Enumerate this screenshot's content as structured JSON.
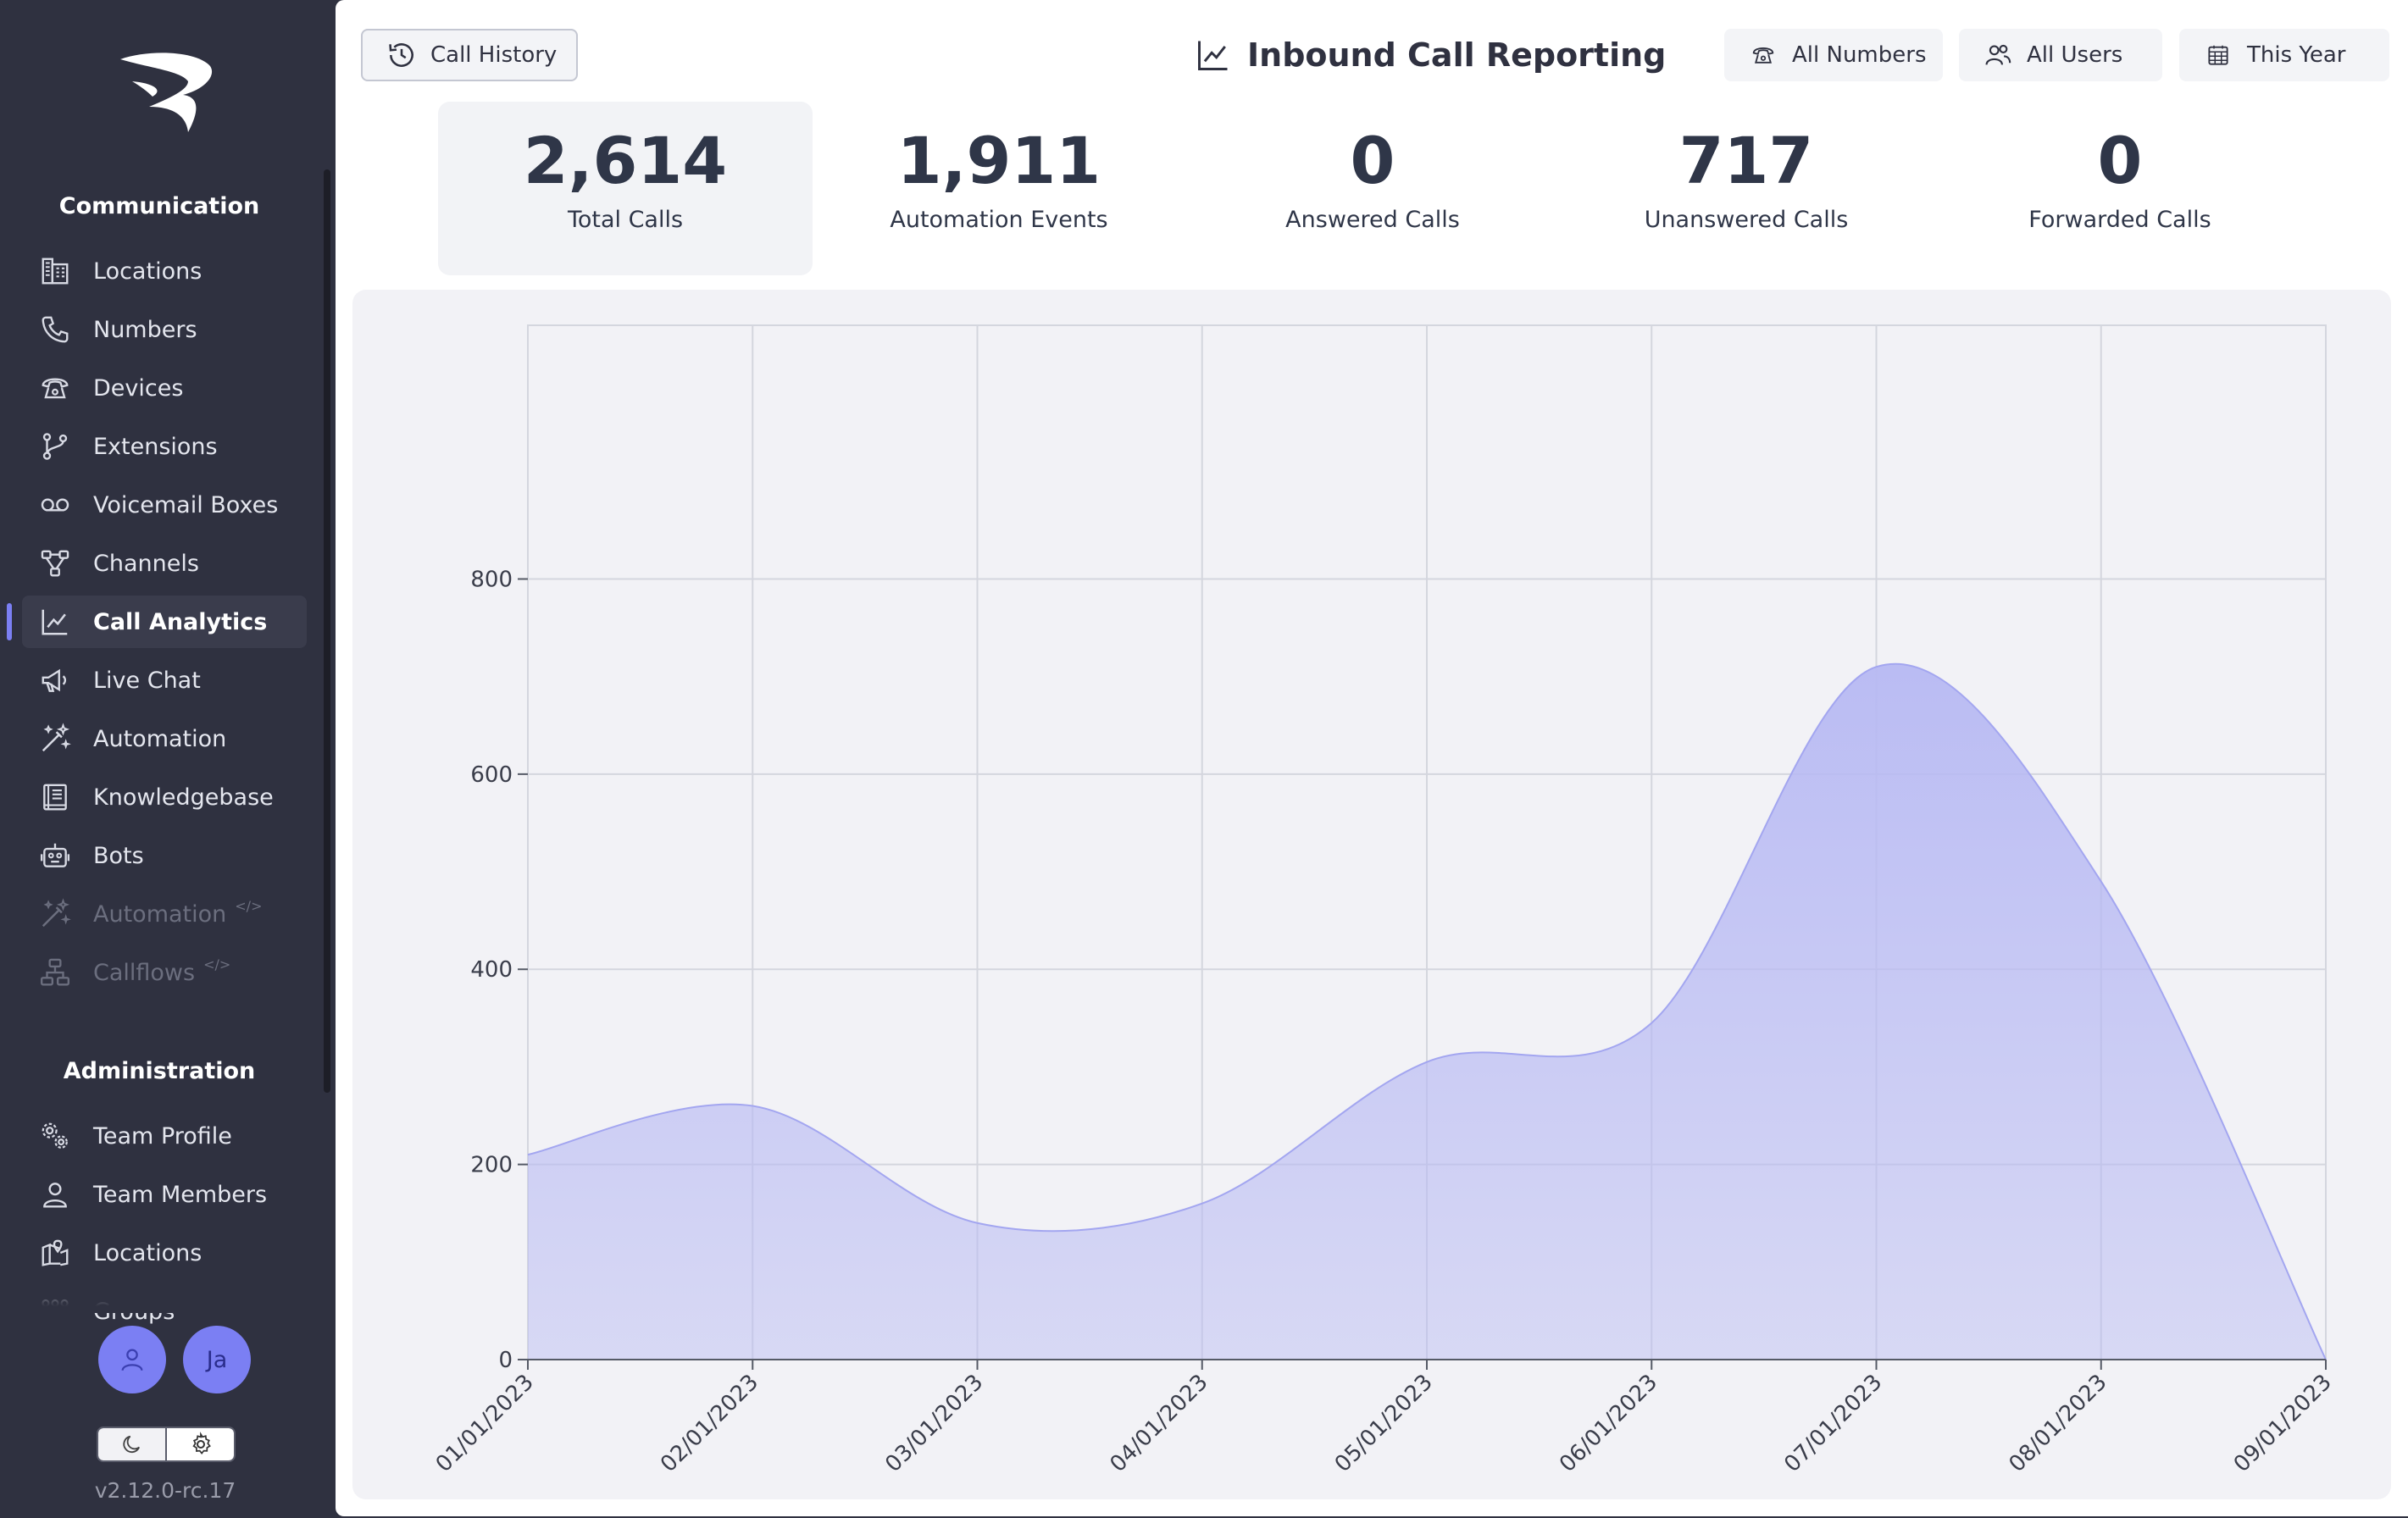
{
  "sidebar": {
    "sections": [
      {
        "title": "Communication",
        "items": [
          {
            "label": "Locations",
            "icon": "building-icon"
          },
          {
            "label": "Numbers",
            "icon": "phone-icon"
          },
          {
            "label": "Devices",
            "icon": "desk-phone-icon"
          },
          {
            "label": "Extensions",
            "icon": "git-branch-icon"
          },
          {
            "label": "Voicemail Boxes",
            "icon": "voicemail-icon"
          },
          {
            "label": "Channels",
            "icon": "share-nodes-icon"
          },
          {
            "label": "Call Analytics",
            "icon": "line-chart-icon",
            "active": true
          },
          {
            "label": "Live Chat",
            "icon": "megaphone-icon"
          },
          {
            "label": "Automation",
            "icon": "magic-wand-icon"
          },
          {
            "label": "Knowledgebase",
            "icon": "book-icon"
          },
          {
            "label": "Bots",
            "icon": "robot-icon"
          },
          {
            "label": "Automation",
            "icon": "magic-wand-icon",
            "disabled": true,
            "tag": "</>"
          },
          {
            "label": "Callflows",
            "icon": "sitemap-icon",
            "disabled": true,
            "tag": "</>"
          }
        ]
      },
      {
        "title": "Administration",
        "items": [
          {
            "label": "Team Profile",
            "icon": "cogs-icon"
          },
          {
            "label": "Team Members",
            "icon": "user-icon"
          },
          {
            "label": "Locations",
            "icon": "map-icon"
          },
          {
            "label": "Groups",
            "icon": "group-icon"
          }
        ]
      }
    ],
    "avatars": [
      {
        "label": "",
        "icon": "user-icon"
      },
      {
        "label": "Ja"
      }
    ],
    "version": "v2.12.0-rc.17"
  },
  "header": {
    "call_history_label": "Call History",
    "title": "Inbound Call Reporting",
    "filters": [
      {
        "label": "All Numbers",
        "icon": "desk-phone-icon"
      },
      {
        "label": "All Users",
        "icon": "users-icon"
      },
      {
        "label": "This Year",
        "icon": "calendar-icon"
      }
    ]
  },
  "stats": [
    {
      "value": "2,614",
      "label": "Total Calls",
      "selected": true
    },
    {
      "value": "1,911",
      "label": "Automation Events"
    },
    {
      "value": "0",
      "label": "Answered Calls"
    },
    {
      "value": "717",
      "label": "Unanswered Calls"
    },
    {
      "value": "0",
      "label": "Forwarded Calls"
    }
  ],
  "colors": {
    "accent": "#7b7ff3",
    "sidebar_bg": "#2f3140",
    "area_fill": "#b7b9f3"
  },
  "chart_data": {
    "type": "area",
    "title": "",
    "xlabel": "",
    "ylabel": "",
    "x": [
      "01/01/2023",
      "02/01/2023",
      "03/01/2023",
      "04/01/2023",
      "05/01/2023",
      "06/01/2023",
      "07/01/2023",
      "08/01/2023",
      "09/01/2023"
    ],
    "series": [
      {
        "values": [
          210,
          260,
          140,
          160,
          305,
          345,
          710,
          490,
          0
        ]
      }
    ],
    "yticks": [
      0,
      200,
      400,
      600,
      800
    ],
    "ylim": [
      0,
      1060
    ],
    "grid": true,
    "smooth": true
  }
}
